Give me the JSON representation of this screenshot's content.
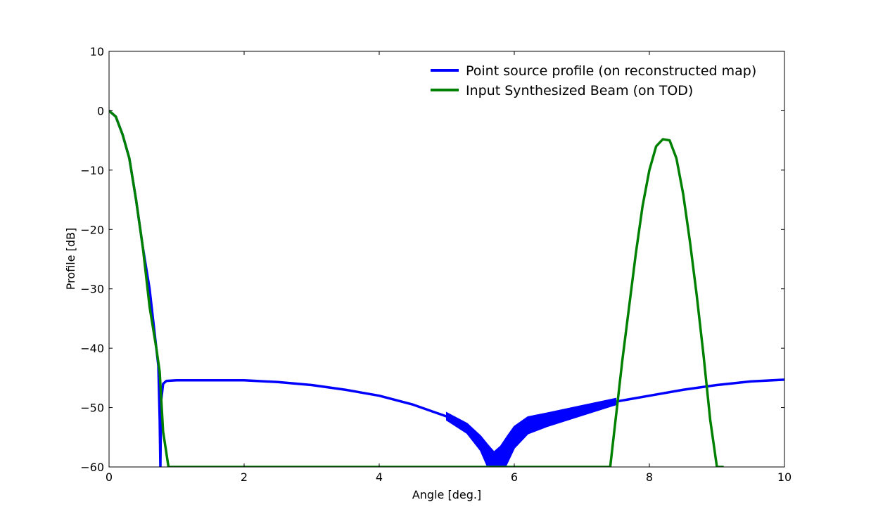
{
  "chart_data": {
    "type": "line",
    "title": "",
    "xlabel": "Angle [deg.]",
    "ylabel": "Profile [dB]",
    "xlim": [
      0,
      10
    ],
    "ylim": [
      -60,
      10
    ],
    "xticks": [
      0,
      2,
      4,
      6,
      8,
      10
    ],
    "yticks": [
      10,
      0,
      -10,
      -20,
      -30,
      -40,
      -50,
      -60
    ],
    "xtick_labels": [
      "0",
      "2",
      "4",
      "6",
      "8",
      "10"
    ],
    "ytick_labels": [
      "10",
      "0",
      "−10",
      "−20",
      "−30",
      "−40",
      "−50",
      "−60"
    ],
    "grid": false,
    "legend_position": "top-right",
    "series": [
      {
        "name": "Point source profile (on reconstructed map)",
        "color": "#0000ff",
        "x": [
          0,
          0.1,
          0.2,
          0.3,
          0.4,
          0.5,
          0.6,
          0.65,
          0.7,
          0.73,
          0.75,
          0.76,
          0.77,
          0.8,
          0.85,
          1.0,
          1.5,
          2.0,
          2.5,
          3.0,
          3.5,
          4.0,
          4.5,
          5.0,
          5.3,
          5.5,
          5.6,
          5.7,
          5.8,
          5.9,
          6.0,
          6.2,
          6.5,
          7.0,
          7.5,
          8.0,
          8.5,
          9.0,
          9.5,
          10.0
        ],
        "y": [
          0,
          -1,
          -4,
          -8,
          -15,
          -23,
          -30,
          -35,
          -40,
          -43,
          -52,
          -60,
          -49,
          -46,
          -45.5,
          -45.4,
          -45.4,
          -45.4,
          -45.7,
          -46.2,
          -47,
          -48,
          -49.5,
          -51.5,
          -53.5,
          -56,
          -58,
          -60,
          -59,
          -57,
          -55,
          -53,
          -52,
          -50.5,
          -49,
          -48,
          -47,
          -46.2,
          -45.6,
          -45.3
        ],
        "band_x": [
          5.0,
          5.3,
          5.5,
          5.6,
          5.7,
          5.8,
          5.9,
          6.0,
          6.2,
          6.5,
          7.0,
          7.5
        ],
        "band_half_width": [
          0.6,
          0.8,
          1.2,
          1.8,
          2.5,
          2.5,
          2.2,
          1.8,
          1.4,
          1.1,
          0.8,
          0.5
        ]
      },
      {
        "name": "Input Synthesized Beam (on TOD)",
        "color": "#008000",
        "x": [
          0,
          0.1,
          0.2,
          0.3,
          0.4,
          0.5,
          0.6,
          0.7,
          0.75,
          0.8,
          0.88,
          7.42,
          7.5,
          7.6,
          7.7,
          7.8,
          7.9,
          8.0,
          8.1,
          8.2,
          8.3,
          8.4,
          8.5,
          8.6,
          8.7,
          8.8,
          8.9,
          9.0,
          9.05,
          9.1
        ],
        "y": [
          0,
          -1,
          -4,
          -8,
          -15,
          -23,
          -33,
          -40,
          -44,
          -54,
          -60,
          -60,
          -52,
          -42,
          -33,
          -24,
          -16,
          -10,
          -6,
          -4.8,
          -5,
          -8,
          -14,
          -22,
          -31,
          -41,
          -52,
          -60,
          -60,
          -60
        ]
      }
    ]
  }
}
